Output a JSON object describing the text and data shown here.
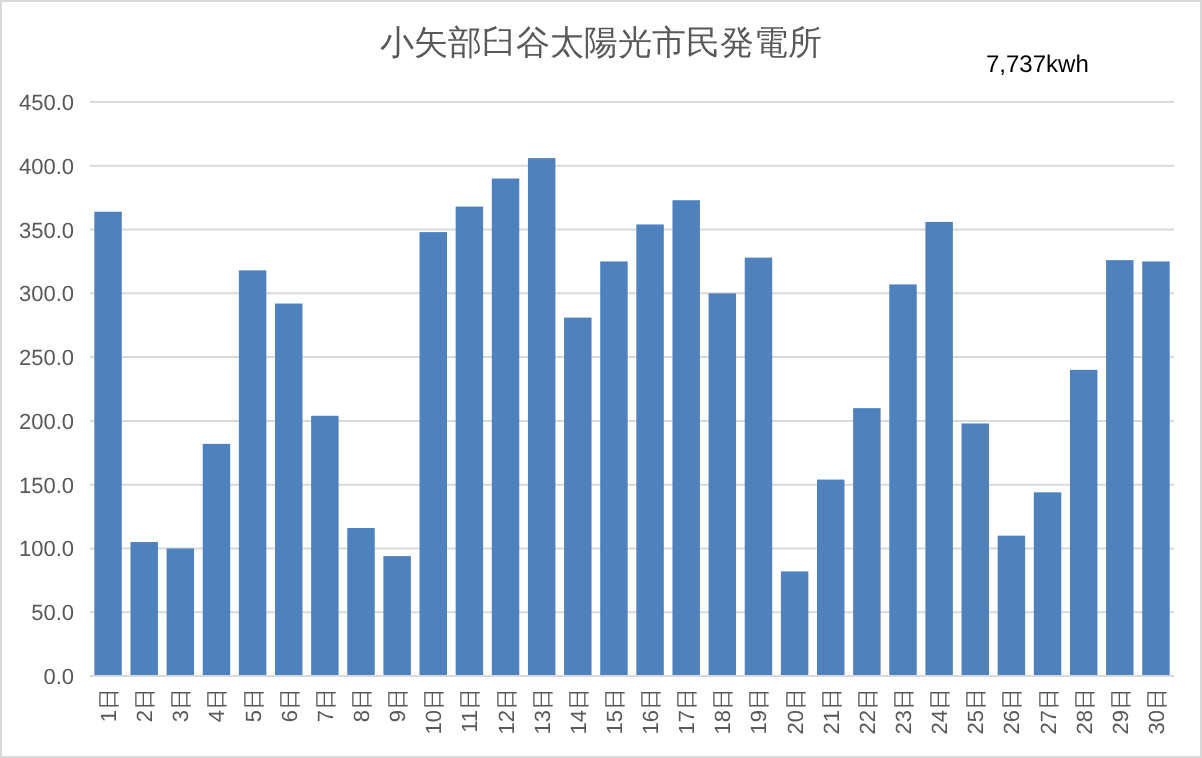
{
  "chart_data": {
    "type": "bar",
    "title": "小矢部臼谷太陽光市民発電所",
    "annotations": [
      "7,737kwh"
    ],
    "categories": [
      "1日",
      "2日",
      "3日",
      "4日",
      "5日",
      "6日",
      "7日",
      "8日",
      "9日",
      "10日",
      "11日",
      "12日",
      "13日",
      "14日",
      "15日",
      "16日",
      "17日",
      "18日",
      "19日",
      "20日",
      "21日",
      "22日",
      "23日",
      "24日",
      "25日",
      "26日",
      "27日",
      "28日",
      "29日",
      "30日"
    ],
    "values": [
      364,
      105,
      100,
      182,
      318,
      292,
      204,
      116,
      94,
      348,
      368,
      390,
      406,
      281,
      325,
      354,
      373,
      300,
      328,
      82,
      154,
      210,
      307,
      356,
      198,
      110,
      144,
      240,
      326,
      325
    ],
    "color": "#4f81bd",
    "ylim": [
      0,
      450
    ],
    "yticks": [
      {
        "value": 0,
        "label": "0.0"
      },
      {
        "value": 50,
        "label": "50.0"
      },
      {
        "value": 100,
        "label": "100.0"
      },
      {
        "value": 150,
        "label": "150.0"
      },
      {
        "value": 200,
        "label": "200.0"
      },
      {
        "value": 250,
        "label": "250.0"
      },
      {
        "value": 300,
        "label": "300.0"
      },
      {
        "value": 350,
        "label": "350.0"
      },
      {
        "value": 400,
        "label": "400.0"
      },
      {
        "value": 450,
        "label": "450.0"
      }
    ],
    "grid": "y"
  }
}
